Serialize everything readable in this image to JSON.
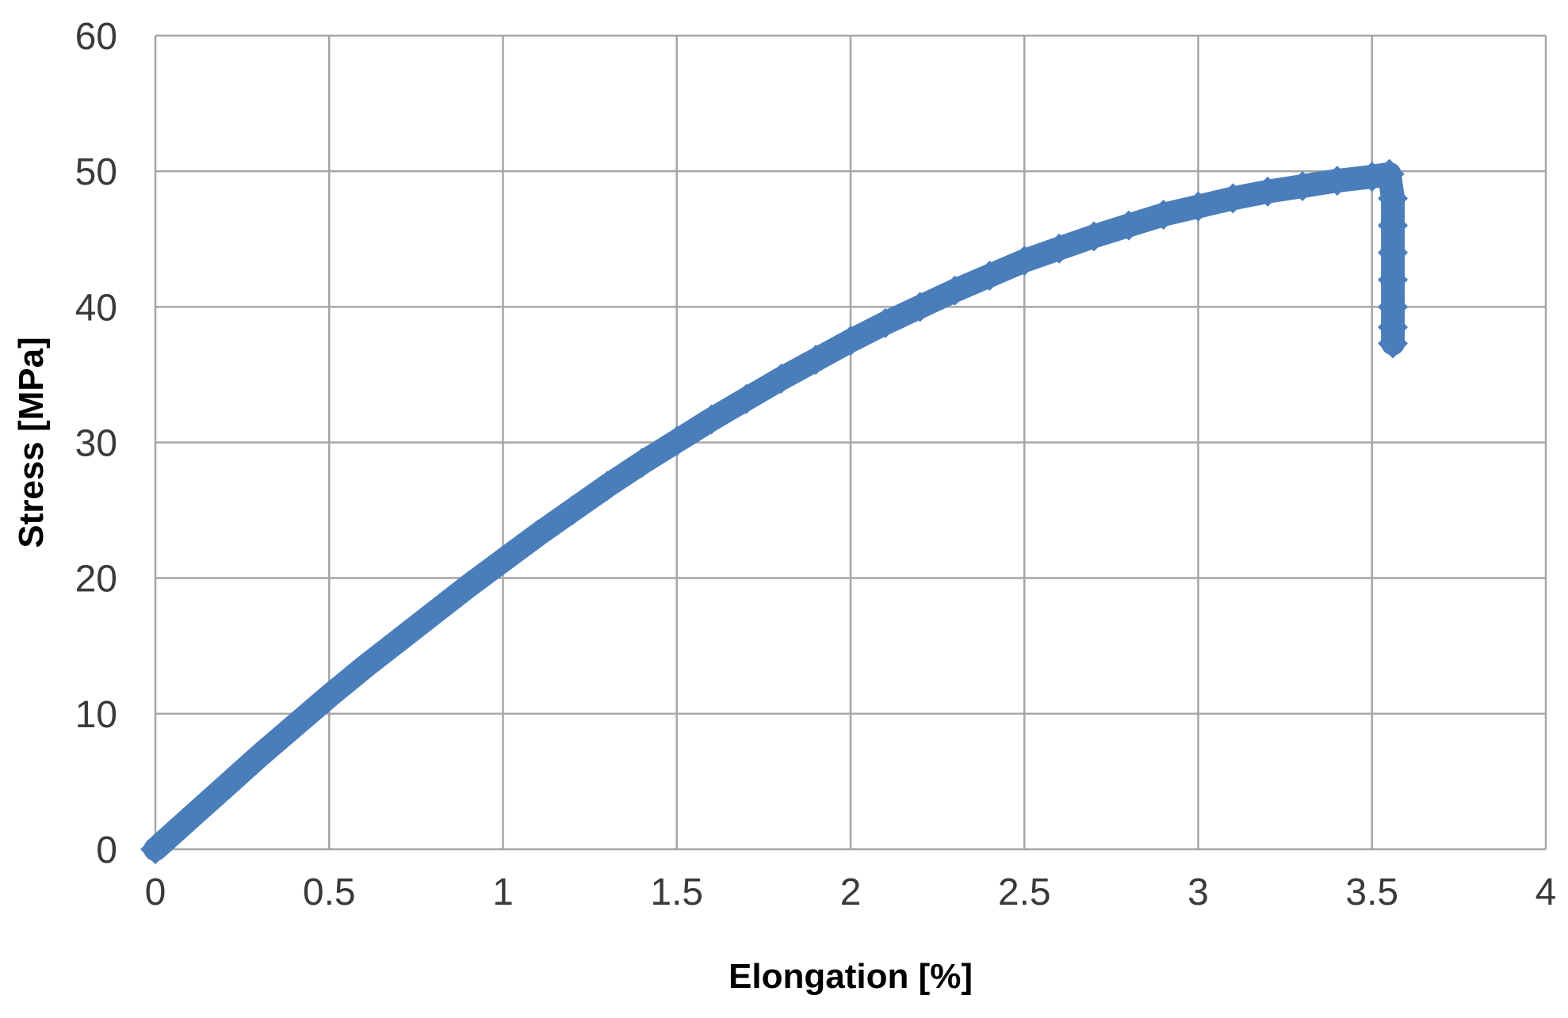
{
  "chart_data": {
    "type": "scatter",
    "title": "",
    "xlabel": "Elongation [%]",
    "ylabel": "Stress [MPa]",
    "xlim": [
      0,
      4
    ],
    "ylim": [
      0,
      60
    ],
    "xticks": [
      0,
      0.5,
      1,
      1.5,
      2,
      2.5,
      3,
      3.5,
      4
    ],
    "yticks": [
      0,
      10,
      20,
      30,
      40,
      50,
      60
    ],
    "xtick_labels": [
      "0",
      "0.5",
      "1",
      "1.5",
      "2",
      "2.5",
      "3",
      "3.5",
      "4"
    ],
    "ytick_labels": [
      "0",
      "10",
      "20",
      "30",
      "40",
      "50",
      "60"
    ],
    "grid": true,
    "legend": "none",
    "marker": "diamond",
    "series": [
      {
        "color": "#4a7ebb",
        "x": [
          0,
          0.1,
          0.2,
          0.3,
          0.4,
          0.5,
          0.6,
          0.7,
          0.8,
          0.9,
          1.0,
          1.1,
          1.2,
          1.3,
          1.4,
          1.5,
          1.6,
          1.7,
          1.8,
          1.9,
          2.0,
          2.1,
          2.2,
          2.3,
          2.4,
          2.5,
          2.6,
          2.7,
          2.8,
          2.9,
          3.0,
          3.1,
          3.2,
          3.3,
          3.4,
          3.5,
          3.55,
          3.56,
          3.56,
          3.56,
          3.56,
          3.56,
          3.56,
          3.56
        ],
        "y": [
          0,
          2.3,
          4.6,
          6.9,
          9.1,
          11.3,
          13.4,
          15.4,
          17.4,
          19.4,
          21.3,
          23.2,
          25.0,
          26.8,
          28.5,
          30.1,
          31.7,
          33.2,
          34.7,
          36.1,
          37.5,
          38.8,
          40.0,
          41.2,
          42.3,
          43.4,
          44.3,
          45.2,
          46.0,
          46.8,
          47.4,
          48.0,
          48.5,
          48.9,
          49.3,
          49.6,
          49.8,
          48.0,
          46.0,
          44.0,
          42.0,
          40.0,
          38.5,
          37.3
        ]
      }
    ]
  }
}
